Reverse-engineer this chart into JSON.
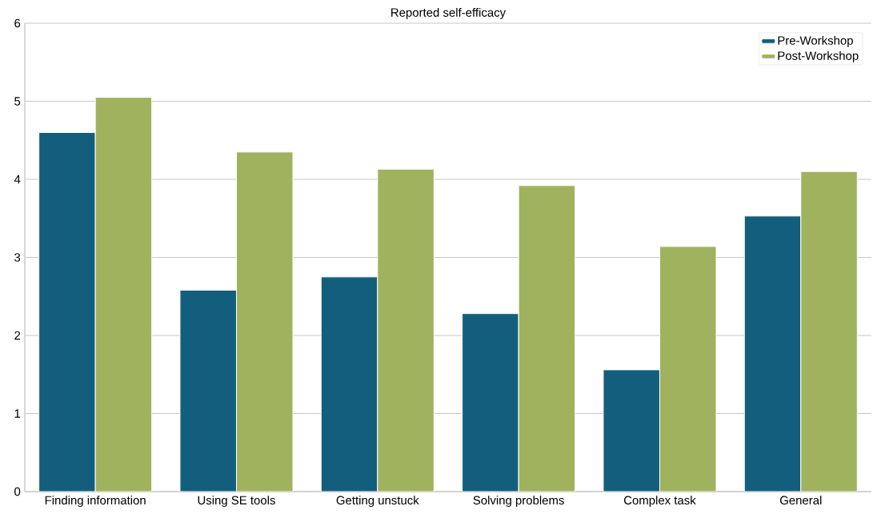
{
  "chart_data": {
    "type": "bar",
    "title": "Reported self-efficacy",
    "categories": [
      "Finding information",
      "Using SE tools",
      "Getting unstuck",
      "Solving problems",
      "Complex task",
      "General"
    ],
    "series": [
      {
        "name": "Pre-Workshop",
        "color": "#135e7c",
        "values": [
          4.6,
          2.58,
          2.75,
          2.28,
          1.56,
          3.53
        ]
      },
      {
        "name": "Post-Workshop",
        "color": "#a0b25e",
        "values": [
          5.05,
          4.35,
          4.13,
          3.92,
          3.14,
          4.1
        ]
      }
    ],
    "ylim": [
      0,
      6
    ],
    "yticks": [
      0,
      1,
      2,
      3,
      4,
      5,
      6
    ],
    "grid": "y",
    "legend": "top right"
  }
}
